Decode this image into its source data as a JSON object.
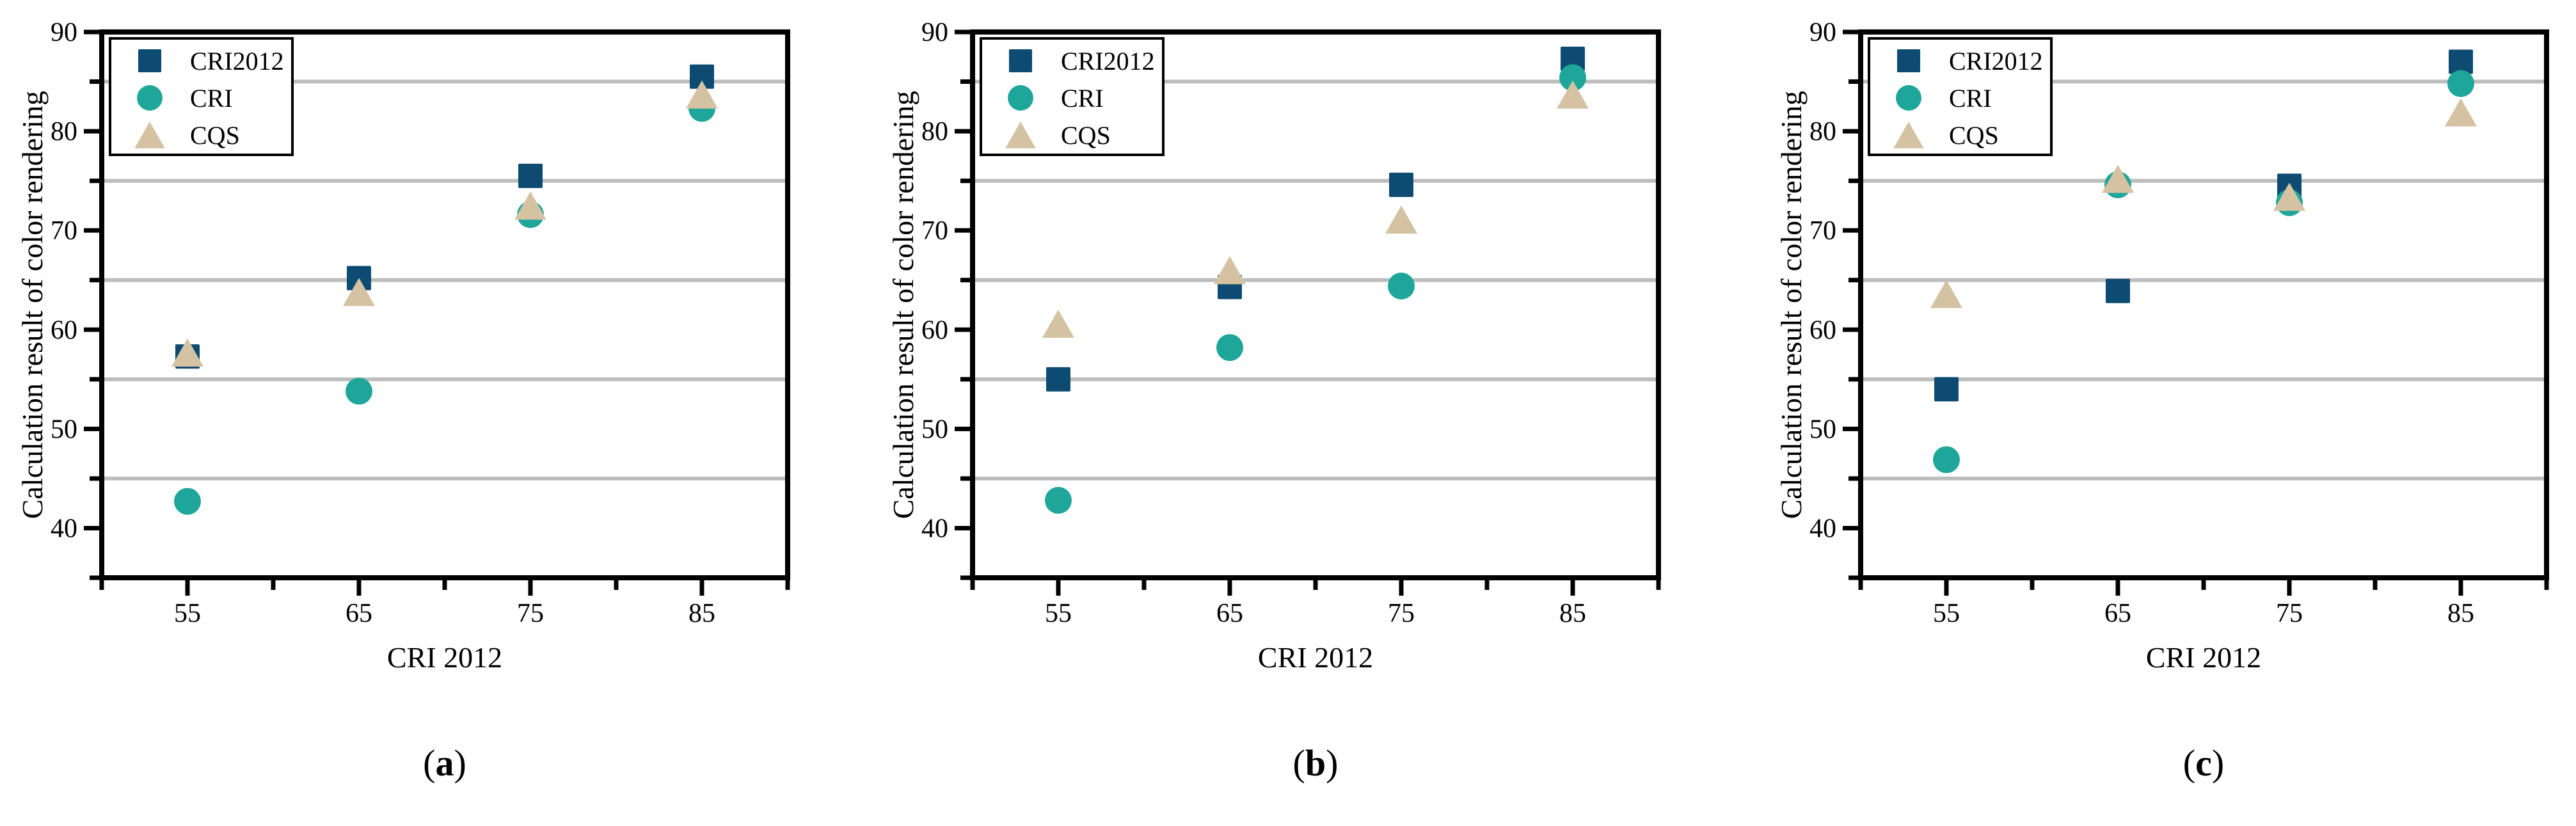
{
  "figure": {
    "background": "#ffffff",
    "text_color": "#000000",
    "colors": {
      "cri2012_square": "#0e4b72",
      "cri_circle": "#1fa69a",
      "cqs_triangle": "#d4c2a2",
      "gridline": "#bdbdbd",
      "axis": "#000000",
      "legend_border": "#000000",
      "legend_background": "#ffffff"
    },
    "legend_labels": [
      "CRI2012",
      "CRI",
      "CQS"
    ],
    "captions": [
      "(a)",
      "(b)",
      "(c)"
    ]
  },
  "chart_data": [
    {
      "type": "scatter",
      "caption": "(a)",
      "xlabel": "CRI 2012",
      "ylabel": "Calculation result of color rendering",
      "xlim": [
        50,
        90
      ],
      "ylim": [
        35,
        90
      ],
      "x_major_ticks": [
        55,
        65,
        75,
        85
      ],
      "x_minor_ticks": [
        50,
        60,
        70,
        80,
        90
      ],
      "y_major_ticks": [
        40,
        50,
        60,
        70,
        80,
        90
      ],
      "y_minor_ticks": [
        35,
        45,
        55,
        65,
        75,
        85
      ],
      "gridlines_y": [
        45,
        55,
        65,
        75,
        85
      ],
      "grid": "horizontal-minor",
      "legend_position": "top-left",
      "x": [
        55,
        65,
        75,
        85
      ],
      "series": [
        {
          "name": "CRI2012",
          "marker": "square",
          "values": [
            57.3,
            65.2,
            75.5,
            85.5
          ]
        },
        {
          "name": "CRI",
          "marker": "circle",
          "values": [
            42.7,
            53.8,
            71.6,
            82.3
          ]
        },
        {
          "name": "CQS",
          "marker": "triangle",
          "values": [
            57.7,
            63.8,
            72.5,
            83.7
          ]
        }
      ]
    },
    {
      "type": "scatter",
      "caption": "(b)",
      "xlabel": "CRI 2012",
      "ylabel": "Calculation result of color rendering",
      "xlim": [
        50,
        90
      ],
      "ylim": [
        35,
        90
      ],
      "x_major_ticks": [
        55,
        65,
        75,
        85
      ],
      "x_minor_ticks": [
        50,
        60,
        70,
        80,
        90
      ],
      "y_major_ticks": [
        40,
        50,
        60,
        70,
        80,
        90
      ],
      "y_minor_ticks": [
        35,
        45,
        55,
        65,
        75,
        85
      ],
      "gridlines_y": [
        45,
        55,
        65,
        75,
        85
      ],
      "grid": "horizontal-minor",
      "legend_position": "top-left",
      "x": [
        55,
        65,
        75,
        85
      ],
      "series": [
        {
          "name": "CRI2012",
          "marker": "square",
          "values": [
            55.0,
            64.3,
            74.6,
            87.3
          ]
        },
        {
          "name": "CRI",
          "marker": "circle",
          "values": [
            42.8,
            58.2,
            64.4,
            85.4
          ]
        },
        {
          "name": "CQS",
          "marker": "triangle",
          "values": [
            60.6,
            66.0,
            71.1,
            83.7
          ]
        }
      ]
    },
    {
      "type": "scatter",
      "caption": "(c)",
      "xlabel": "CRI 2012",
      "ylabel": "Calculation result of color rendering",
      "xlim": [
        50,
        90
      ],
      "ylim": [
        35,
        90
      ],
      "x_major_ticks": [
        55,
        65,
        75,
        85
      ],
      "x_minor_ticks": [
        50,
        60,
        70,
        80,
        90
      ],
      "y_major_ticks": [
        40,
        50,
        60,
        70,
        80,
        90
      ],
      "y_minor_ticks": [
        35,
        45,
        55,
        65,
        75,
        85
      ],
      "gridlines_y": [
        45,
        55,
        65,
        75,
        85
      ],
      "grid": "horizontal-minor",
      "legend_position": "top-left",
      "x": [
        55,
        65,
        75,
        85
      ],
      "series": [
        {
          "name": "CRI2012",
          "marker": "square",
          "values": [
            54.0,
            63.9,
            74.5,
            87.0
          ]
        },
        {
          "name": "CRI",
          "marker": "circle",
          "values": [
            46.9,
            74.6,
            72.8,
            84.8
          ]
        },
        {
          "name": "CQS",
          "marker": "triangle",
          "values": [
            63.6,
            75.2,
            73.4,
            81.9
          ]
        }
      ]
    }
  ]
}
